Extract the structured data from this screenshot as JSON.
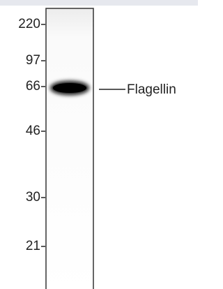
{
  "blot": {
    "markers": [
      "220",
      "97",
      "66",
      "46",
      "30",
      "21"
    ],
    "band_label": "Flagellin"
  }
}
